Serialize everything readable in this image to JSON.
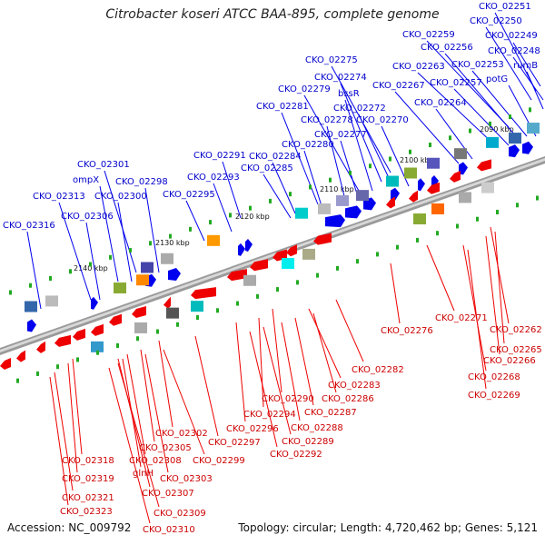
{
  "title": "Citrobacter koseri ATCC BAA-895, complete genome",
  "footer": {
    "accession": "Accession: NC_009792",
    "info": "Topology: circular; Length: 4,720,462 bp; Genes: 5,121"
  },
  "ticks": [
    "2090 kbp",
    "2100 kbp",
    "2110 kbp",
    "2120 kbp",
    "2130 kbp",
    "2140 kbp"
  ],
  "forward_labels": [
    "CKO_02251",
    "CKO_02250",
    "CKO_02259",
    "CKO_02249",
    "CKO_02256",
    "CKO_02248",
    "CKO_02263",
    "CKO_02253",
    "rumB",
    "CKO_02275",
    "CKO_02274",
    "CKO_02267",
    "CKO_02257",
    "potG",
    "CKO_02279",
    "bssR",
    "CKO_02281",
    "CKO_02272",
    "CKO_02264",
    "CKO_02278",
    "CKO_02270",
    "CKO_02277",
    "CKO_02280",
    "CKO_02291",
    "CKO_02284",
    "CKO_02301",
    "CKO_02285",
    "ompX",
    "CKO_02293",
    "CKO_02298",
    "CKO_02313",
    "CKO_02300",
    "CKO_02295",
    "CKO_02306",
    "CKO_02316"
  ],
  "reverse_labels": [
    "CKO_02271",
    "CKO_02262",
    "CKO_02276",
    "CKO_02265",
    "CKO_02266",
    "CKO_02282",
    "CKO_02268",
    "CKO_02283",
    "CKO_02290",
    "CKO_02286",
    "CKO_02269",
    "CKO_02294",
    "CKO_02287",
    "CKO_02296",
    "CKO_02288",
    "CKO_02302",
    "CKO_02297",
    "CKO_02289",
    "CKO_02305",
    "CKO_02292",
    "CKO_02318",
    "CKO_02308",
    "CKO_02299",
    "CKO_02319",
    "glnH",
    "CKO_02303",
    "CKO_02307",
    "CKO_02321",
    "CKO_02323",
    "CKO_02309",
    "CKO_02310"
  ],
  "colors": {
    "forward": "#0000ee",
    "reverse": "#ee0000",
    "backbone": "#888888"
  }
}
